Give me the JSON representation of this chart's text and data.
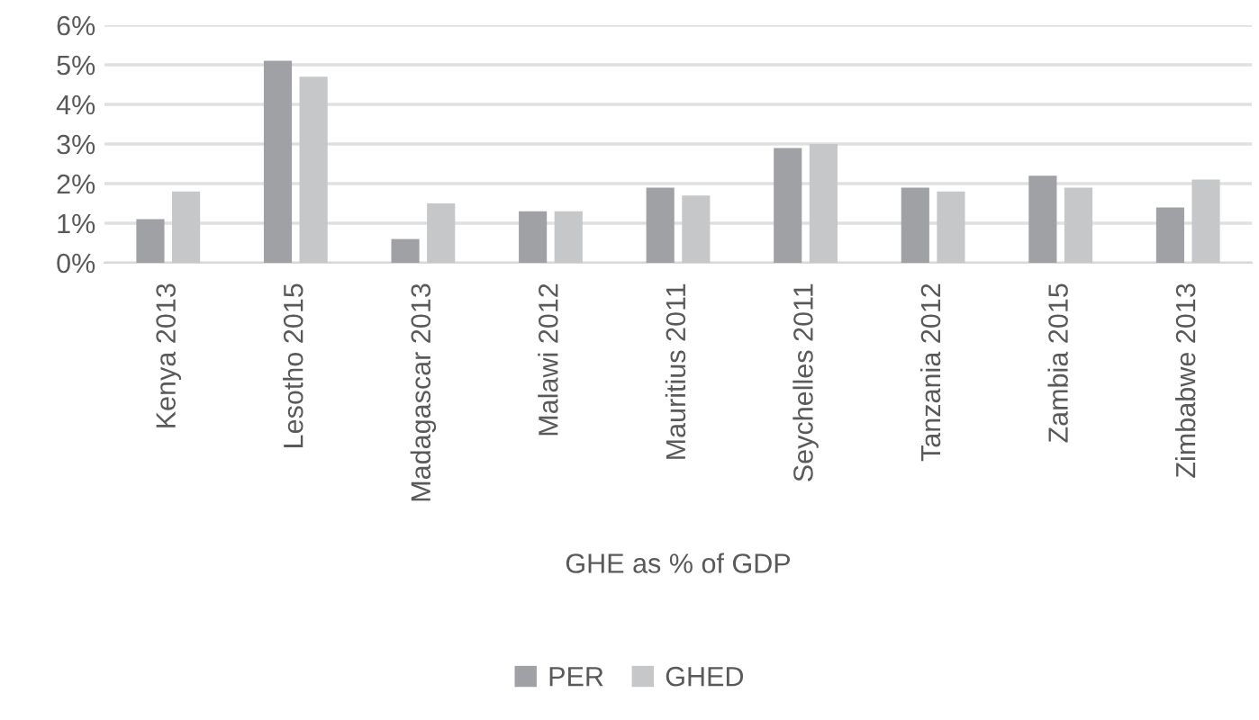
{
  "chart_data": {
    "type": "bar",
    "xlabel": "GHE as % of GDP",
    "categories": [
      "Kenya 2013",
      "Lesotho 2015",
      "Madagascar 2013",
      "Malawi 2012",
      "Mauritius 2011",
      "Seychelles 2011",
      "Tanzania 2012",
      "Zambia 2015",
      "Zimbabwe 2013"
    ],
    "series": [
      {
        "name": "PER",
        "color": "#a0a1a4",
        "values": [
          1.1,
          5.1,
          0.6,
          1.3,
          1.9,
          2.9,
          1.9,
          2.2,
          1.4
        ]
      },
      {
        "name": "GHED",
        "color": "#c6c7c8",
        "values": [
          1.8,
          4.7,
          1.5,
          1.3,
          1.7,
          3.0,
          1.8,
          1.9,
          2.1
        ]
      }
    ],
    "ylim": [
      0,
      6
    ],
    "yticks": [
      {
        "value": 0,
        "label": "0%"
      },
      {
        "value": 1,
        "label": "1%"
      },
      {
        "value": 2,
        "label": "2%"
      },
      {
        "value": 3,
        "label": "3%"
      },
      {
        "value": 4,
        "label": "4%"
      },
      {
        "value": 5,
        "label": "5%"
      },
      {
        "value": 6,
        "label": "6%"
      }
    ],
    "grid": "y",
    "legend": "bottom"
  }
}
